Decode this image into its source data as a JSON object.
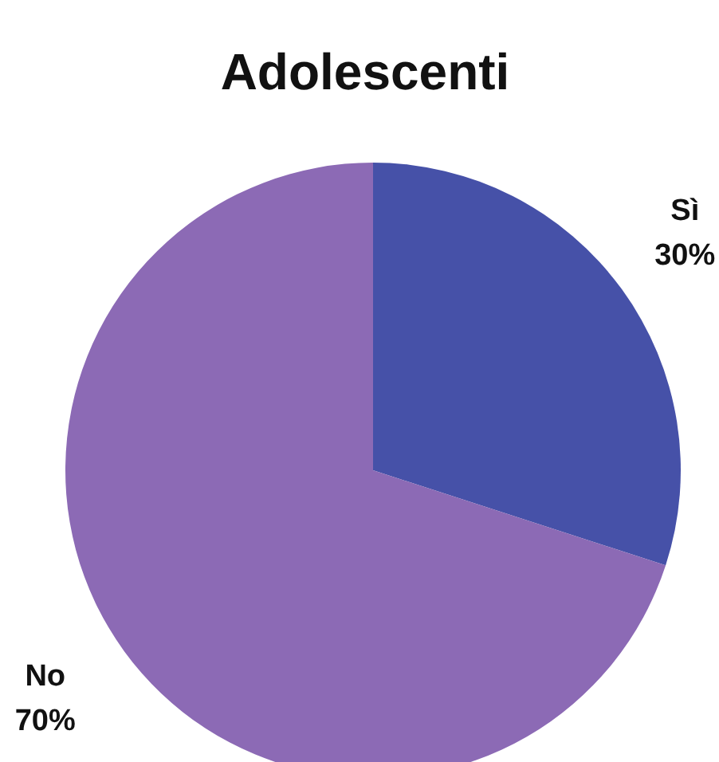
{
  "chart_data": {
    "type": "pie",
    "title": "Adolescenti",
    "categories": [
      "Sì",
      "No"
    ],
    "values": [
      30,
      70
    ],
    "value_labels": [
      "30%",
      "70%"
    ],
    "colors": [
      "#4651a8",
      "#8c6ab5"
    ]
  }
}
